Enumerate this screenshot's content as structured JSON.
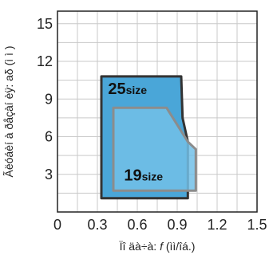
{
  "chart_data": {
    "type": "area",
    "xlabel_prefix": "Ïî   äà÷à: ",
    "xlabel_var": "f",
    "xlabel_unit": " (ìì/îá.)",
    "ylabel": "Ãëóáèí à ðåçàí èÿ: aδ (ì ì )",
    "xlim": [
      0,
      1.5
    ],
    "ylim": [
      0,
      16
    ],
    "xticks": [
      "0",
      "0.3",
      "0.6",
      "0.9",
      "1.2",
      "1.5"
    ],
    "xtick_values": [
      0,
      0.3,
      0.6,
      0.9,
      1.2,
      1.5
    ],
    "yticks": [
      "3",
      "6",
      "9",
      "12",
      "15"
    ],
    "ytick_values": [
      3,
      6,
      9,
      12,
      15
    ],
    "grid": true,
    "regions": [
      {
        "name": "25size",
        "label_main": "25",
        "label_sub": "size",
        "fill": "#4aa6d8",
        "stroke": "#333333",
        "points": [
          [
            0.33,
            10.8
          ],
          [
            0.93,
            10.8
          ],
          [
            0.94,
            7.5
          ],
          [
            0.98,
            5.6
          ],
          [
            0.98,
            1.1
          ],
          [
            0.33,
            1.1
          ]
        ]
      },
      {
        "name": "19size",
        "label_main": "19",
        "label_sub": "size",
        "fill": "#72c0e8",
        "stroke": "#8c8c8c",
        "points": [
          [
            0.42,
            8.3
          ],
          [
            0.82,
            8.3
          ],
          [
            0.98,
            5.6
          ],
          [
            1.04,
            5.0
          ],
          [
            1.04,
            1.7
          ],
          [
            0.42,
            1.7
          ]
        ]
      }
    ]
  }
}
